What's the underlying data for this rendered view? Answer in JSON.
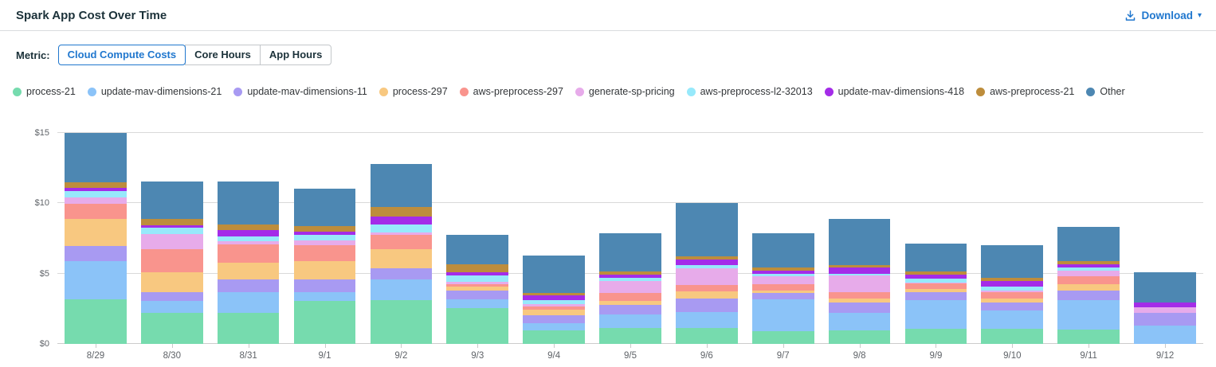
{
  "header": {
    "title": "Spark App Cost Over Time",
    "download": {
      "label": "Download",
      "caret": "▾"
    }
  },
  "metric": {
    "label": "Metric:",
    "options": [
      {
        "label": "Cloud Compute Costs",
        "active": true
      },
      {
        "label": "Core Hours",
        "active": false
      },
      {
        "label": "App Hours",
        "active": false
      }
    ]
  },
  "colors": {
    "accent": "#2077ce",
    "title_text": "#1b3139",
    "axis_text": "#5f6368",
    "gridline": "#d9d9d9",
    "divider": "#d9dcde"
  },
  "chart_data": {
    "type": "bar",
    "stacked": true,
    "title": "Spark App Cost Over Time",
    "xlabel": "",
    "ylabel": "Cloud Compute Costs ($)",
    "unit": "$",
    "ylim": [
      0,
      16
    ],
    "grid": true,
    "legend_position": "top",
    "y_ticks": [
      {
        "value": 0,
        "label": "$0"
      },
      {
        "value": 5,
        "label": "$5"
      },
      {
        "value": 10,
        "label": "$10"
      },
      {
        "value": 15,
        "label": "$15"
      }
    ],
    "categories": [
      "8/29",
      "8/30",
      "8/31",
      "9/1",
      "9/2",
      "9/3",
      "9/4",
      "9/5",
      "9/6",
      "9/7",
      "9/8",
      "9/9",
      "9/10",
      "9/11",
      "9/12"
    ],
    "series": [
      {
        "name": "process-21",
        "color": "#76dbae",
        "values": [
          3.15,
          2.2,
          2.2,
          3.05,
          3.1,
          2.55,
          0.95,
          1.15,
          1.15,
          0.9,
          0.95,
          1.1,
          1.1,
          1.0,
          0
        ]
      },
      {
        "name": "update-mav-dimensions-21",
        "color": "#8bc3f8",
        "values": [
          2.75,
          0.85,
          1.5,
          0.65,
          1.45,
          0.6,
          0.5,
          0.95,
          1.1,
          2.25,
          1.25,
          2.0,
          1.3,
          2.1,
          1.3
        ]
      },
      {
        "name": "update-mav-dimensions-11",
        "color": "#a89af2",
        "values": [
          1.05,
          0.65,
          0.9,
          0.85,
          0.8,
          0.65,
          0.6,
          0.65,
          1.0,
          0.45,
          0.75,
          0.55,
          0.55,
          0.7,
          0.9
        ]
      },
      {
        "name": "process-297",
        "color": "#f8c880",
        "values": [
          1.95,
          1.4,
          1.15,
          1.3,
          1.35,
          0.25,
          0.4,
          0.3,
          0.5,
          0.2,
          0.25,
          0.25,
          0.25,
          0.45,
          0
        ]
      },
      {
        "name": "aws-preprocess-297",
        "color": "#f9948d",
        "values": [
          1.05,
          1.6,
          1.3,
          1.15,
          1.05,
          0.2,
          0.2,
          0.55,
          0.45,
          0.45,
          0.5,
          0.4,
          0.5,
          0.55,
          0
        ]
      },
      {
        "name": "generate-sp-pricing",
        "color": "#e7abea",
        "values": [
          0.45,
          1.1,
          0.25,
          0.35,
          0.15,
          0.15,
          0.2,
          0.85,
          1.15,
          0.55,
          1.15,
          0.05,
          0.1,
          0.4,
          0.4
        ]
      },
      {
        "name": "aws-preprocess-l2-32013",
        "color": "#97e9fb",
        "values": [
          0.45,
          0.45,
          0.35,
          0.4,
          0.6,
          0.45,
          0.25,
          0.25,
          0.25,
          0.2,
          0.1,
          0.3,
          0.25,
          0.25,
          0
        ]
      },
      {
        "name": "update-mav-dimensions-418",
        "color": "#a42ce8",
        "values": [
          0.25,
          0.2,
          0.45,
          0.2,
          0.55,
          0.25,
          0.35,
          0.2,
          0.4,
          0.2,
          0.45,
          0.25,
          0.4,
          0.2,
          0.35
        ]
      },
      {
        "name": "aws-preprocess-21",
        "color": "#bd8d3c",
        "values": [
          0.35,
          0.4,
          0.4,
          0.4,
          0.65,
          0.55,
          0.15,
          0.25,
          0.2,
          0.25,
          0.2,
          0.25,
          0.25,
          0.25,
          0
        ]
      },
      {
        "name": "Other",
        "color": "#4d87b2",
        "values": [
          3.55,
          2.7,
          3.05,
          2.65,
          3.1,
          2.1,
          2.65,
          2.7,
          3.8,
          2.4,
          3.25,
          2.0,
          2.3,
          2.4,
          2.15
        ]
      }
    ]
  }
}
